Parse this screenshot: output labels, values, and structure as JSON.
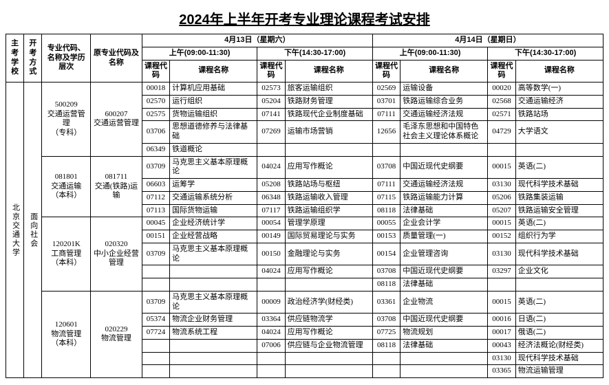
{
  "title": "2024年上半年开考专业理论课程考试安排",
  "header": {
    "school": "主考学校",
    "mode": "开考方式",
    "major": "专业代码、名称及学历层次",
    "orig": "原专业代码及名称",
    "day1": "4月13日（星期六）",
    "day2": "4月14日（星期日）",
    "am": "上午(09:00-11:30)",
    "pm": "下午(14:30-17:00)",
    "ccode": "课程代码",
    "cname": "课程名称"
  },
  "school": "北京交通大学",
  "mode": "面向社会",
  "majors": [
    {
      "code": "500209",
      "name": "交通运营管理",
      "level": "（专科）",
      "orig_code": "600207",
      "orig_name": "交通运营管理",
      "rows": [
        {
          "a": [
            "00018",
            "计算机应用基础"
          ],
          "b": [
            "02573",
            "旅客运输组织"
          ],
          "c": [
            "02569",
            "运输设备"
          ],
          "d": [
            "00020",
            "高等数学(一)"
          ]
        },
        {
          "a": [
            "02570",
            "运行组织"
          ],
          "b": [
            "05204",
            "铁路财务管理"
          ],
          "c": [
            "03701",
            "铁路运输综合业务"
          ],
          "d": [
            "02568",
            "交通运输经济"
          ]
        },
        {
          "a": [
            "02575",
            "货物运输组织"
          ],
          "b": [
            "07141",
            "铁路现代企业制度基础"
          ],
          "c": [
            "07111",
            "交通运输经济法规"
          ],
          "d": [
            "02571",
            "铁路站场"
          ]
        },
        {
          "a": [
            "03706",
            "思想道德修养与法律基础"
          ],
          "b": [
            "07269",
            "运输市场营销"
          ],
          "c": [
            "12656",
            "毛泽东思想和中国特色社会主义理论体系概论"
          ],
          "d": [
            "04729",
            "大学语文"
          ]
        },
        {
          "a": [
            "06349",
            "铁道概论"
          ],
          "b": [
            "",
            ""
          ],
          "c": [
            "",
            ""
          ],
          "d": [
            "",
            ""
          ]
        }
      ]
    },
    {
      "code": "081801",
      "name": "交通运输",
      "level": "（本科）",
      "orig_code": "081711",
      "orig_name": "交通(铁路)运输",
      "rows": [
        {
          "a": [
            "03709",
            "马克思主义基本原理概论"
          ],
          "b": [
            "04024",
            "应用写作概论"
          ],
          "c": [
            "03708",
            "中国近现代史纲要"
          ],
          "d": [
            "00015",
            "英语(二)"
          ]
        },
        {
          "a": [
            "06603",
            "运筹学"
          ],
          "b": [
            "05208",
            "铁路站场与枢纽"
          ],
          "c": [
            "07111",
            "交通运输经济法规"
          ],
          "d": [
            "03130",
            "现代科学技术基础"
          ]
        },
        {
          "a": [
            "07112",
            "交通运输系统分析"
          ],
          "b": [
            "06348",
            "铁路运输收入管理"
          ],
          "c": [
            "07115",
            "铁路运输能力计算"
          ],
          "d": [
            "05206",
            "铁路集装运输"
          ]
        },
        {
          "a": [
            "07113",
            "国际货物运输"
          ],
          "b": [
            "07117",
            "铁路运输组织学"
          ],
          "c": [
            "08118",
            "法律基础"
          ],
          "d": [
            "05207",
            "铁路运输安全管理"
          ]
        }
      ]
    },
    {
      "code": "120201K",
      "name": "工商管理",
      "level": "（本科）",
      "orig_code": "020320",
      "orig_name": "中小企业经营管理",
      "rows": [
        {
          "a": [
            "00045",
            "企业经济统计学"
          ],
          "b": [
            "00054",
            "管理学原理"
          ],
          "c": [
            "00055",
            "企业会计学"
          ],
          "d": [
            "00015",
            "英语(二)"
          ]
        },
        {
          "a": [
            "00151",
            "企业经营战略"
          ],
          "b": [
            "00149",
            "国际贸易理论与实务"
          ],
          "c": [
            "00153",
            "质量管理(一)"
          ],
          "d": [
            "00152",
            "组织行为学"
          ]
        },
        {
          "a": [
            "03709",
            "马克思主义基本原理概论"
          ],
          "b": [
            "00150",
            "金融理论与实务"
          ],
          "c": [
            "00154",
            "企业管理咨询"
          ],
          "d": [
            "03130",
            "现代科学技术基础"
          ]
        },
        {
          "a": [
            "",
            ""
          ],
          "b": [
            "04024",
            "应用写作概论"
          ],
          "c": [
            "03708",
            "中国近现代史纲要"
          ],
          "d": [
            "03297",
            "企业文化"
          ]
        },
        {
          "a": [
            "",
            ""
          ],
          "b": [
            "",
            ""
          ],
          "c": [
            "08118",
            "法律基础"
          ],
          "d": [
            "",
            ""
          ]
        }
      ]
    },
    {
      "code": "120601",
      "name": "物流管理",
      "level": "（本科）",
      "orig_code": "020229",
      "orig_name": "物流管理",
      "rows": [
        {
          "a": [
            "03709",
            "马克思主义基本原理概论"
          ],
          "b": [
            "00009",
            "政治经济学(财经类)"
          ],
          "c": [
            "03361",
            "企业物流"
          ],
          "d": [
            "00015",
            "英语(二)"
          ]
        },
        {
          "a": [
            "05374",
            "物流企业财务管理"
          ],
          "b": [
            "03364",
            "供应链物流学"
          ],
          "c": [
            "03708",
            "中国近现代史纲要"
          ],
          "d": [
            "00016",
            "日语(二)"
          ]
        },
        {
          "a": [
            "07724",
            "物流系统工程"
          ],
          "b": [
            "04024",
            "应用写作概论"
          ],
          "c": [
            "07725",
            "物流规划"
          ],
          "d": [
            "00017",
            "俄语(二)"
          ]
        },
        {
          "a": [
            "",
            ""
          ],
          "b": [
            "07006",
            "供应链与企业物流管理"
          ],
          "c": [
            "08118",
            "法律基础"
          ],
          "d": [
            "00043",
            "经济法概论(财经类)"
          ]
        },
        {
          "a": [
            "",
            ""
          ],
          "b": [
            "",
            ""
          ],
          "c": [
            "",
            ""
          ],
          "d": [
            "03130",
            "现代科学技术基础"
          ]
        },
        {
          "a": [
            "",
            ""
          ],
          "b": [
            "",
            ""
          ],
          "c": [
            "",
            ""
          ],
          "d": [
            "03365",
            "物流运输管理"
          ]
        }
      ]
    }
  ]
}
